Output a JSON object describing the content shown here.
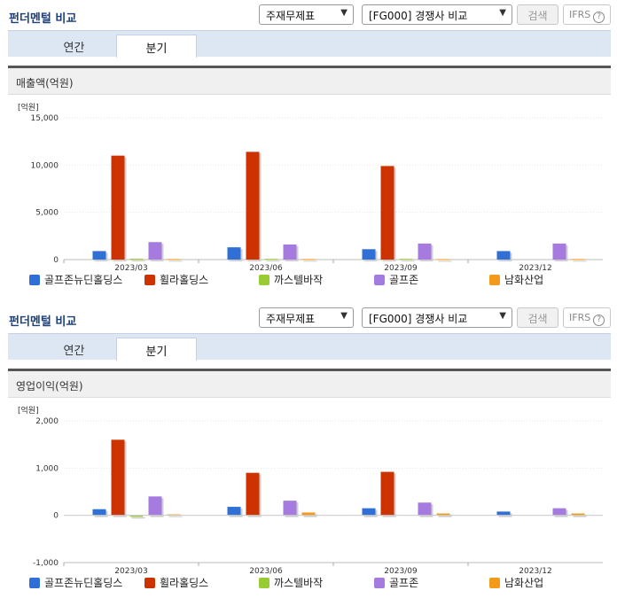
{
  "panels": [
    {
      "title": "펀더멘털 비교",
      "select1": "주재무제표",
      "select2": "[FG000] 경쟁사 비교",
      "search_label": "검색",
      "ifrs_label": "IFRS",
      "help_label": "?",
      "tabs": [
        "연간",
        "분기"
      ],
      "active_tab": "분기",
      "section_title": "매출액(억원)",
      "unit": "[억원]"
    },
    {
      "title": "펀더멘털 비교",
      "select1": "주재무제표",
      "select2": "[FG000] 경쟁사 비교",
      "search_label": "검색",
      "ifrs_label": "IFRS",
      "help_label": "?",
      "tabs": [
        "연간",
        "분기"
      ],
      "active_tab": "분기",
      "section_title": "영업이익(억원)",
      "unit": "[억원]"
    }
  ],
  "chart_data": [
    {
      "type": "bar",
      "title": "매출액(억원)",
      "ylabel": "[억원]",
      "categories": [
        "2023/03",
        "2023/06",
        "2023/09",
        "2023/12"
      ],
      "ylim": [
        0,
        15000
      ],
      "yticks": [
        0,
        5000,
        10000,
        15000
      ],
      "ytick_labels": [
        "0",
        "5,000",
        "10,000",
        "15,000"
      ],
      "series": [
        {
          "name": "골프존뉴딘홀딩스",
          "color": "#2f6fd6",
          "values": [
            900,
            1300,
            1100,
            900
          ]
        },
        {
          "name": "휠라홀딩스",
          "color": "#cc3300",
          "values": [
            11000,
            11400,
            9900,
            0
          ]
        },
        {
          "name": "까스텔바작",
          "color": "#99cc33",
          "values": [
            100,
            80,
            80,
            0
          ]
        },
        {
          "name": "골프존",
          "color": "#a57be0",
          "values": [
            1850,
            1600,
            1700,
            1700
          ]
        },
        {
          "name": "남화산업",
          "color": "#f39a1a",
          "values": [
            60,
            60,
            50,
            60
          ]
        }
      ],
      "legend": "bottom"
    },
    {
      "type": "bar",
      "title": "영업이익(억원)",
      "ylabel": "[억원]",
      "categories": [
        "2023/03",
        "2023/06",
        "2023/09",
        "2023/12"
      ],
      "ylim": [
        -1000,
        2000
      ],
      "yticks": [
        -1000,
        0,
        1000,
        2000
      ],
      "ytick_labels": [
        "-1,000",
        "0",
        "1,000",
        "2,000"
      ],
      "series": [
        {
          "name": "골프존뉴딘홀딩스",
          "color": "#2f6fd6",
          "values": [
            130,
            180,
            150,
            80
          ]
        },
        {
          "name": "휠라홀딩스",
          "color": "#cc3300",
          "values": [
            1600,
            900,
            920,
            0
          ]
        },
        {
          "name": "까스텔바작",
          "color": "#99cc33",
          "values": [
            -30,
            0,
            0,
            0
          ]
        },
        {
          "name": "골프존",
          "color": "#a57be0",
          "values": [
            400,
            310,
            270,
            150
          ]
        },
        {
          "name": "남화산업",
          "color": "#f39a1a",
          "values": [
            20,
            60,
            40,
            40
          ]
        }
      ],
      "legend": "bottom"
    }
  ]
}
